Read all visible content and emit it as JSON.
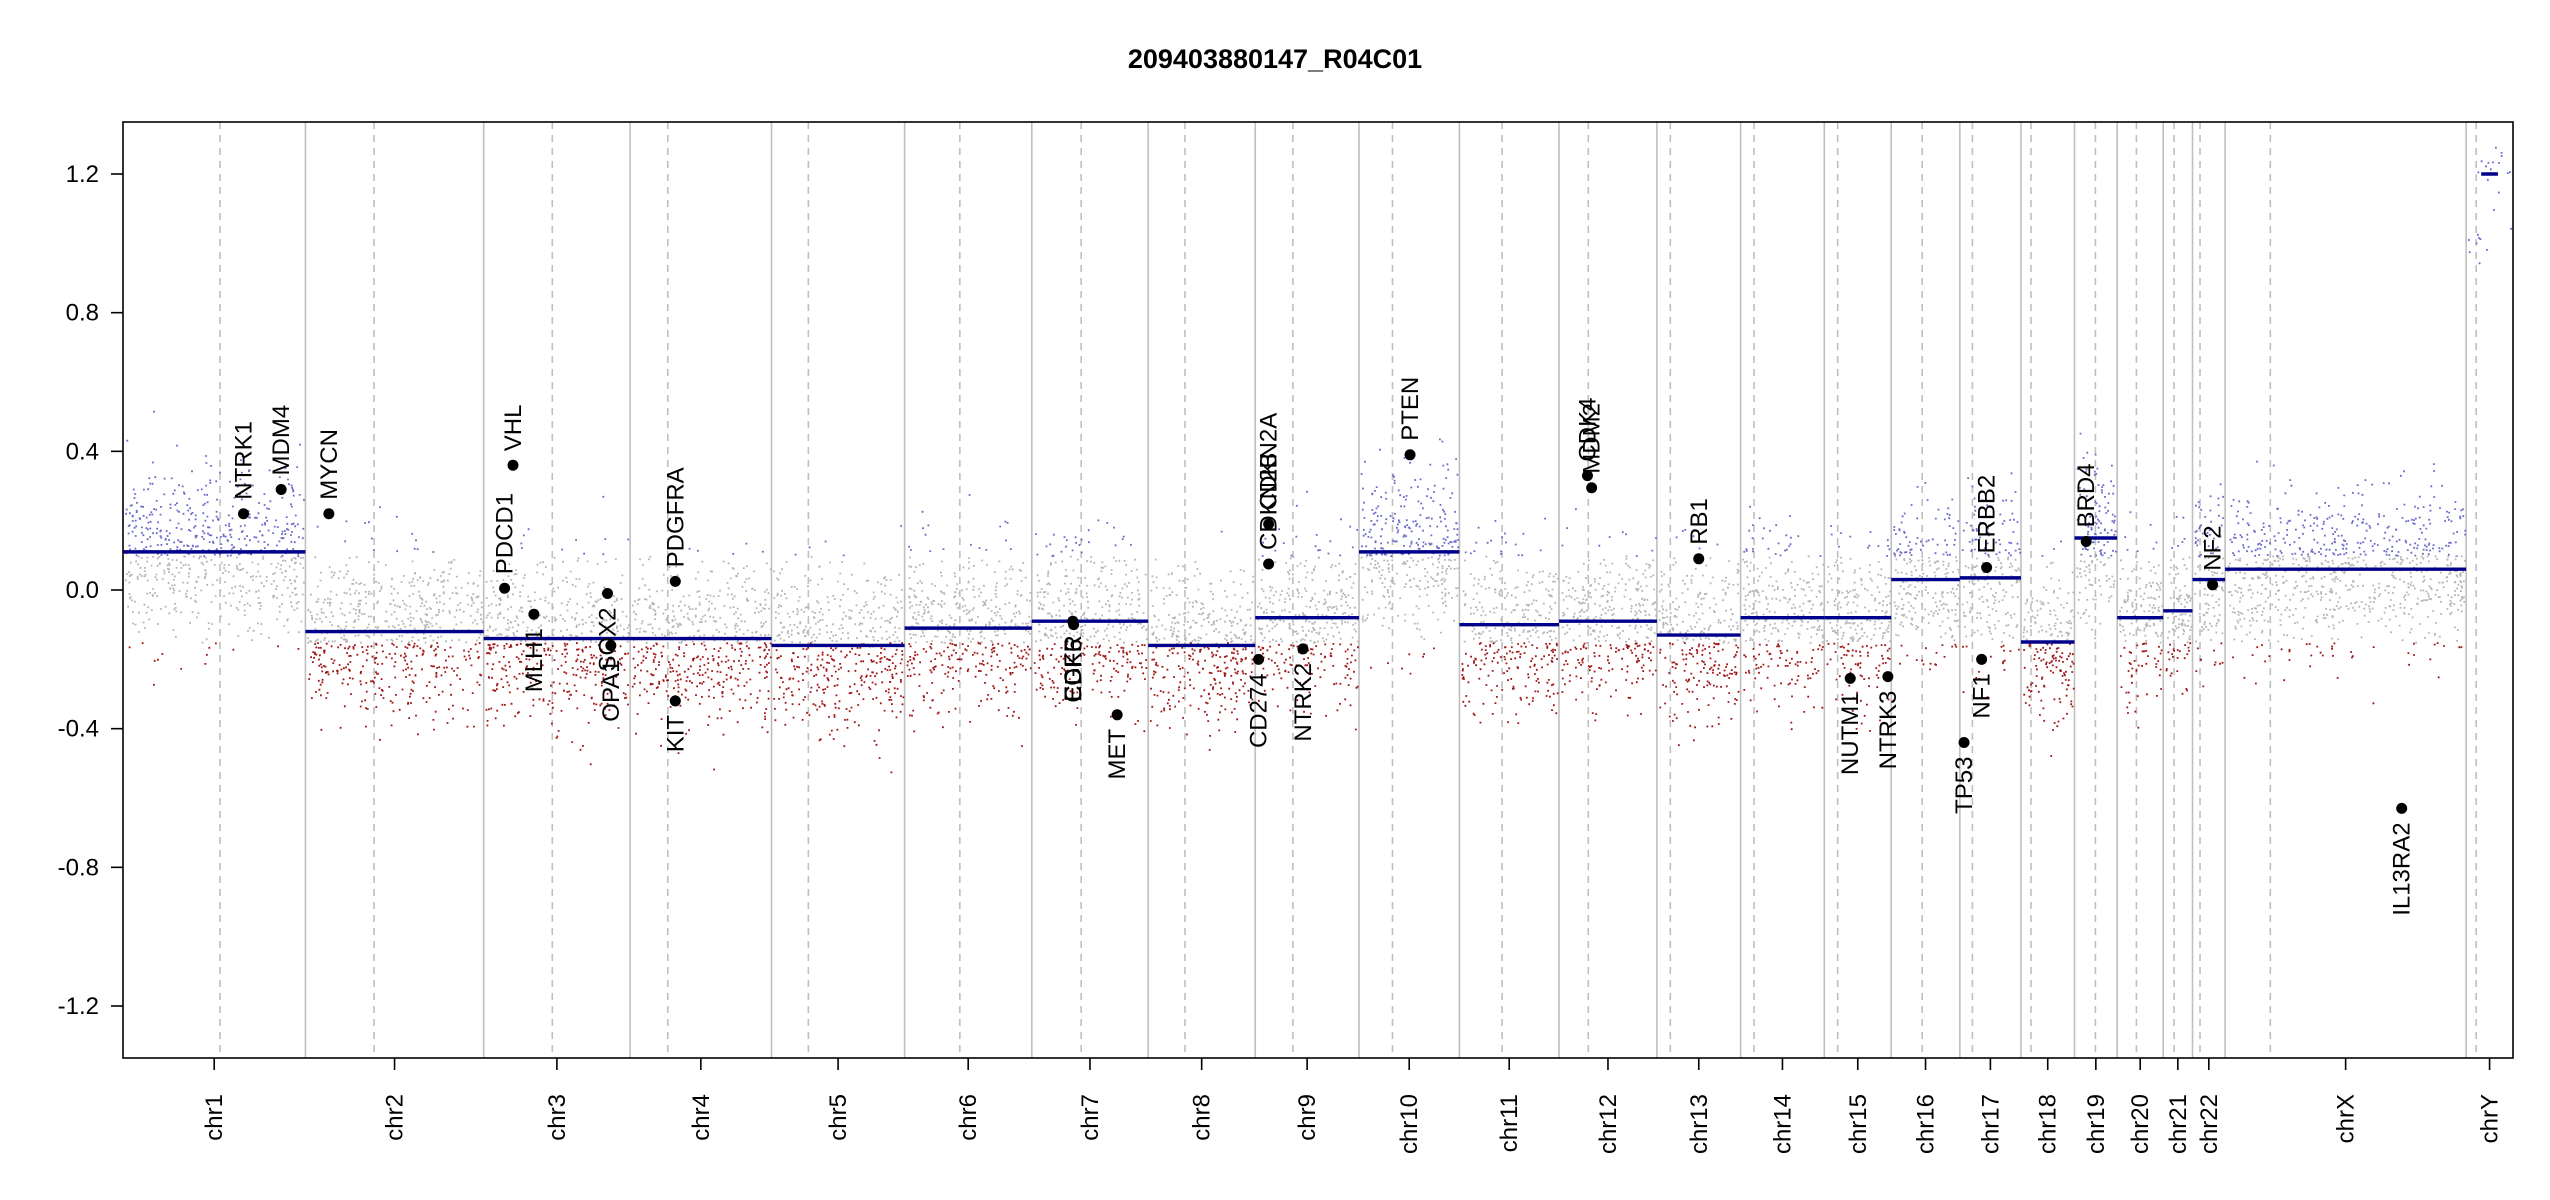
{
  "title": "209403880147_R04C01",
  "colors": {
    "segment": "#00008B",
    "gain_points": "#6A6AC8",
    "neutral_points": "#B5B5B5",
    "loss_points": "#A01515",
    "gene_marker": "#000000",
    "chrom_boundary": "#BFBFBF",
    "centromere": "#BFBFBF"
  },
  "chart_data": {
    "type": "scatter",
    "title": "209403880147_R04C01",
    "xlabel": "",
    "ylabel": "",
    "ylim": [
      -1.35,
      1.35
    ],
    "yticks": [
      -1.2,
      -0.8,
      -0.4,
      0.0,
      0.4,
      0.8,
      1.2
    ],
    "ytick_labels": [
      "-1.2",
      "-0.8",
      "-0.4",
      "0.0",
      "0.4",
      "0.8",
      "1.2"
    ],
    "grid": false,
    "legend": "none",
    "genome_range": [
      0,
      2856
    ],
    "chromosomes": [
      {
        "name": "chr1",
        "start": 0,
        "end": 218,
        "centromere": 116,
        "segments": [
          {
            "start": 0,
            "end": 218,
            "value": 0.11
          }
        ]
      },
      {
        "name": "chr2",
        "start": 218,
        "end": 431,
        "centromere": 300,
        "segments": [
          {
            "start": 218,
            "end": 431,
            "value": -0.12
          }
        ]
      },
      {
        "name": "chr3",
        "start": 431,
        "end": 606,
        "centromere": 513,
        "segments": [
          {
            "start": 431,
            "end": 606,
            "value": -0.14
          }
        ]
      },
      {
        "name": "chr4",
        "start": 606,
        "end": 775,
        "centromere": 651,
        "segments": [
          {
            "start": 606,
            "end": 775,
            "value": -0.14
          }
        ]
      },
      {
        "name": "chr5",
        "start": 775,
        "end": 934,
        "centromere": 819,
        "segments": [
          {
            "start": 775,
            "end": 934,
            "value": -0.16
          }
        ]
      },
      {
        "name": "chr6",
        "start": 934,
        "end": 1086,
        "centromere": 1000,
        "segments": [
          {
            "start": 934,
            "end": 1086,
            "value": -0.11
          }
        ]
      },
      {
        "name": "chr7",
        "start": 1086,
        "end": 1225,
        "centromere": 1145,
        "segments": [
          {
            "start": 1086,
            "end": 1225,
            "value": -0.09
          }
        ]
      },
      {
        "name": "chr8",
        "start": 1225,
        "end": 1353,
        "centromere": 1269,
        "segments": [
          {
            "start": 1225,
            "end": 1353,
            "value": -0.16
          }
        ]
      },
      {
        "name": "chr9",
        "start": 1353,
        "end": 1477,
        "centromere": 1398,
        "segments": [
          {
            "start": 1353,
            "end": 1477,
            "value": -0.08
          }
        ]
      },
      {
        "name": "chr10",
        "start": 1477,
        "end": 1597,
        "centromere": 1517,
        "segments": [
          {
            "start": 1477,
            "end": 1597,
            "value": 0.11
          }
        ]
      },
      {
        "name": "chr11",
        "start": 1597,
        "end": 1716,
        "centromere": 1648,
        "segments": [
          {
            "start": 1597,
            "end": 1716,
            "value": -0.1
          }
        ]
      },
      {
        "name": "chr12",
        "start": 1716,
        "end": 1833,
        "centromere": 1751,
        "segments": [
          {
            "start": 1716,
            "end": 1833,
            "value": -0.09
          }
        ]
      },
      {
        "name": "chr13",
        "start": 1833,
        "end": 1933,
        "centromere": 1849,
        "segments": [
          {
            "start": 1833,
            "end": 1933,
            "value": -0.13
          }
        ]
      },
      {
        "name": "chr14",
        "start": 1933,
        "end": 2033,
        "centromere": 1949,
        "segments": [
          {
            "start": 1933,
            "end": 2033,
            "value": -0.08
          }
        ]
      },
      {
        "name": "chr15",
        "start": 2033,
        "end": 2113,
        "centromere": 2049,
        "segments": [
          {
            "start": 2033,
            "end": 2113,
            "value": -0.08
          }
        ]
      },
      {
        "name": "chr16",
        "start": 2113,
        "end": 2195,
        "centromere": 2150,
        "segments": [
          {
            "start": 2113,
            "end": 2195,
            "value": 0.03
          }
        ]
      },
      {
        "name": "chr17",
        "start": 2195,
        "end": 2268,
        "centromere": 2210,
        "segments": [
          {
            "start": 2195,
            "end": 2268,
            "value": 0.035
          }
        ]
      },
      {
        "name": "chr18",
        "start": 2268,
        "end": 2332,
        "centromere": 2280,
        "segments": [
          {
            "start": 2268,
            "end": 2332,
            "value": -0.15
          }
        ]
      },
      {
        "name": "chr19",
        "start": 2332,
        "end": 2383,
        "centromere": 2357,
        "segments": [
          {
            "start": 2332,
            "end": 2383,
            "value": 0.15
          }
        ]
      },
      {
        "name": "chr20",
        "start": 2383,
        "end": 2438,
        "centromere": 2406,
        "segments": [
          {
            "start": 2383,
            "end": 2438,
            "value": -0.08
          }
        ]
      },
      {
        "name": "chr21",
        "start": 2438,
        "end": 2473,
        "centromere": 2451,
        "segments": [
          {
            "start": 2438,
            "end": 2473,
            "value": -0.06
          }
        ]
      },
      {
        "name": "chr22",
        "start": 2473,
        "end": 2512,
        "centromere": 2482,
        "segments": [
          {
            "start": 2473,
            "end": 2512,
            "value": 0.03
          }
        ]
      },
      {
        "name": "chrX",
        "start": 2512,
        "end": 2800,
        "centromere": 2566,
        "segments": [
          {
            "start": 2512,
            "end": 2800,
            "value": 0.06
          }
        ]
      },
      {
        "name": "chrY",
        "start": 2800,
        "end": 2856,
        "centromere": 2812,
        "segments": [
          {
            "start": 2818,
            "end": 2838,
            "value": 1.2
          }
        ]
      }
    ],
    "genes": [
      {
        "name": "NTRK1",
        "x": 144,
        "value": 0.22,
        "label_side": "above"
      },
      {
        "name": "MDM4",
        "x": 189,
        "value": 0.29,
        "label_side": "above"
      },
      {
        "name": "MYCN",
        "x": 246,
        "value": 0.22,
        "label_side": "above"
      },
      {
        "name": "PDCD1",
        "x": 456,
        "value": 0.005,
        "label_side": "above"
      },
      {
        "name": "VHL",
        "x": 466,
        "value": 0.36,
        "label_side": "above"
      },
      {
        "name": "MLH1",
        "x": 491,
        "value": -0.07,
        "label_side": "below"
      },
      {
        "name": "SOX2",
        "x": 579,
        "value": -0.01,
        "label_side": "below"
      },
      {
        "name": "OPA1",
        "x": 583,
        "value": -0.16,
        "label_side": "below"
      },
      {
        "name": "PDGFRA",
        "x": 660,
        "value": 0.025,
        "label_side": "above"
      },
      {
        "name": "KIT",
        "x": 660,
        "value": -0.32,
        "label_side": "below"
      },
      {
        "name": "EGFR",
        "x": 1135,
        "value": -0.09,
        "label_side": "below"
      },
      {
        "name": "CDK6",
        "x": 1136,
        "value": -0.1,
        "label_side": "below"
      },
      {
        "name": "MET",
        "x": 1188,
        "value": -0.36,
        "label_side": "below"
      },
      {
        "name": "CD274",
        "x": 1357,
        "value": -0.2,
        "label_side": "below"
      },
      {
        "name": "CDKN2A",
        "x": 1369,
        "value": 0.19,
        "label_side": "above"
      },
      {
        "name": "CDKN2B",
        "x": 1369,
        "value": 0.075,
        "label_side": "above"
      },
      {
        "name": "NTRK2",
        "x": 1410,
        "value": -0.17,
        "label_side": "below"
      },
      {
        "name": "PTEN",
        "x": 1538,
        "value": 0.39,
        "label_side": "above"
      },
      {
        "name": "CDK4",
        "x": 1750,
        "value": 0.33,
        "label_side": "above"
      },
      {
        "name": "MDM2",
        "x": 1755,
        "value": 0.295,
        "label_side": "above"
      },
      {
        "name": "RB1",
        "x": 1883,
        "value": 0.09,
        "label_side": "above"
      },
      {
        "name": "NUTM1",
        "x": 2064,
        "value": -0.255,
        "label_side": "below"
      },
      {
        "name": "NTRK3",
        "x": 2109,
        "value": -0.25,
        "label_side": "below"
      },
      {
        "name": "TP53",
        "x": 2200,
        "value": -0.44,
        "label_side": "below"
      },
      {
        "name": "NF1",
        "x": 2221,
        "value": -0.2,
        "label_side": "below"
      },
      {
        "name": "ERBB2",
        "x": 2227,
        "value": 0.065,
        "label_side": "above"
      },
      {
        "name": "BRD4",
        "x": 2346,
        "value": 0.14,
        "label_side": "above"
      },
      {
        "name": "NF2",
        "x": 2497,
        "value": 0.015,
        "label_side": "above"
      },
      {
        "name": "IL13RA2",
        "x": 2723,
        "value": -0.63,
        "label_side": "below"
      }
    ]
  }
}
